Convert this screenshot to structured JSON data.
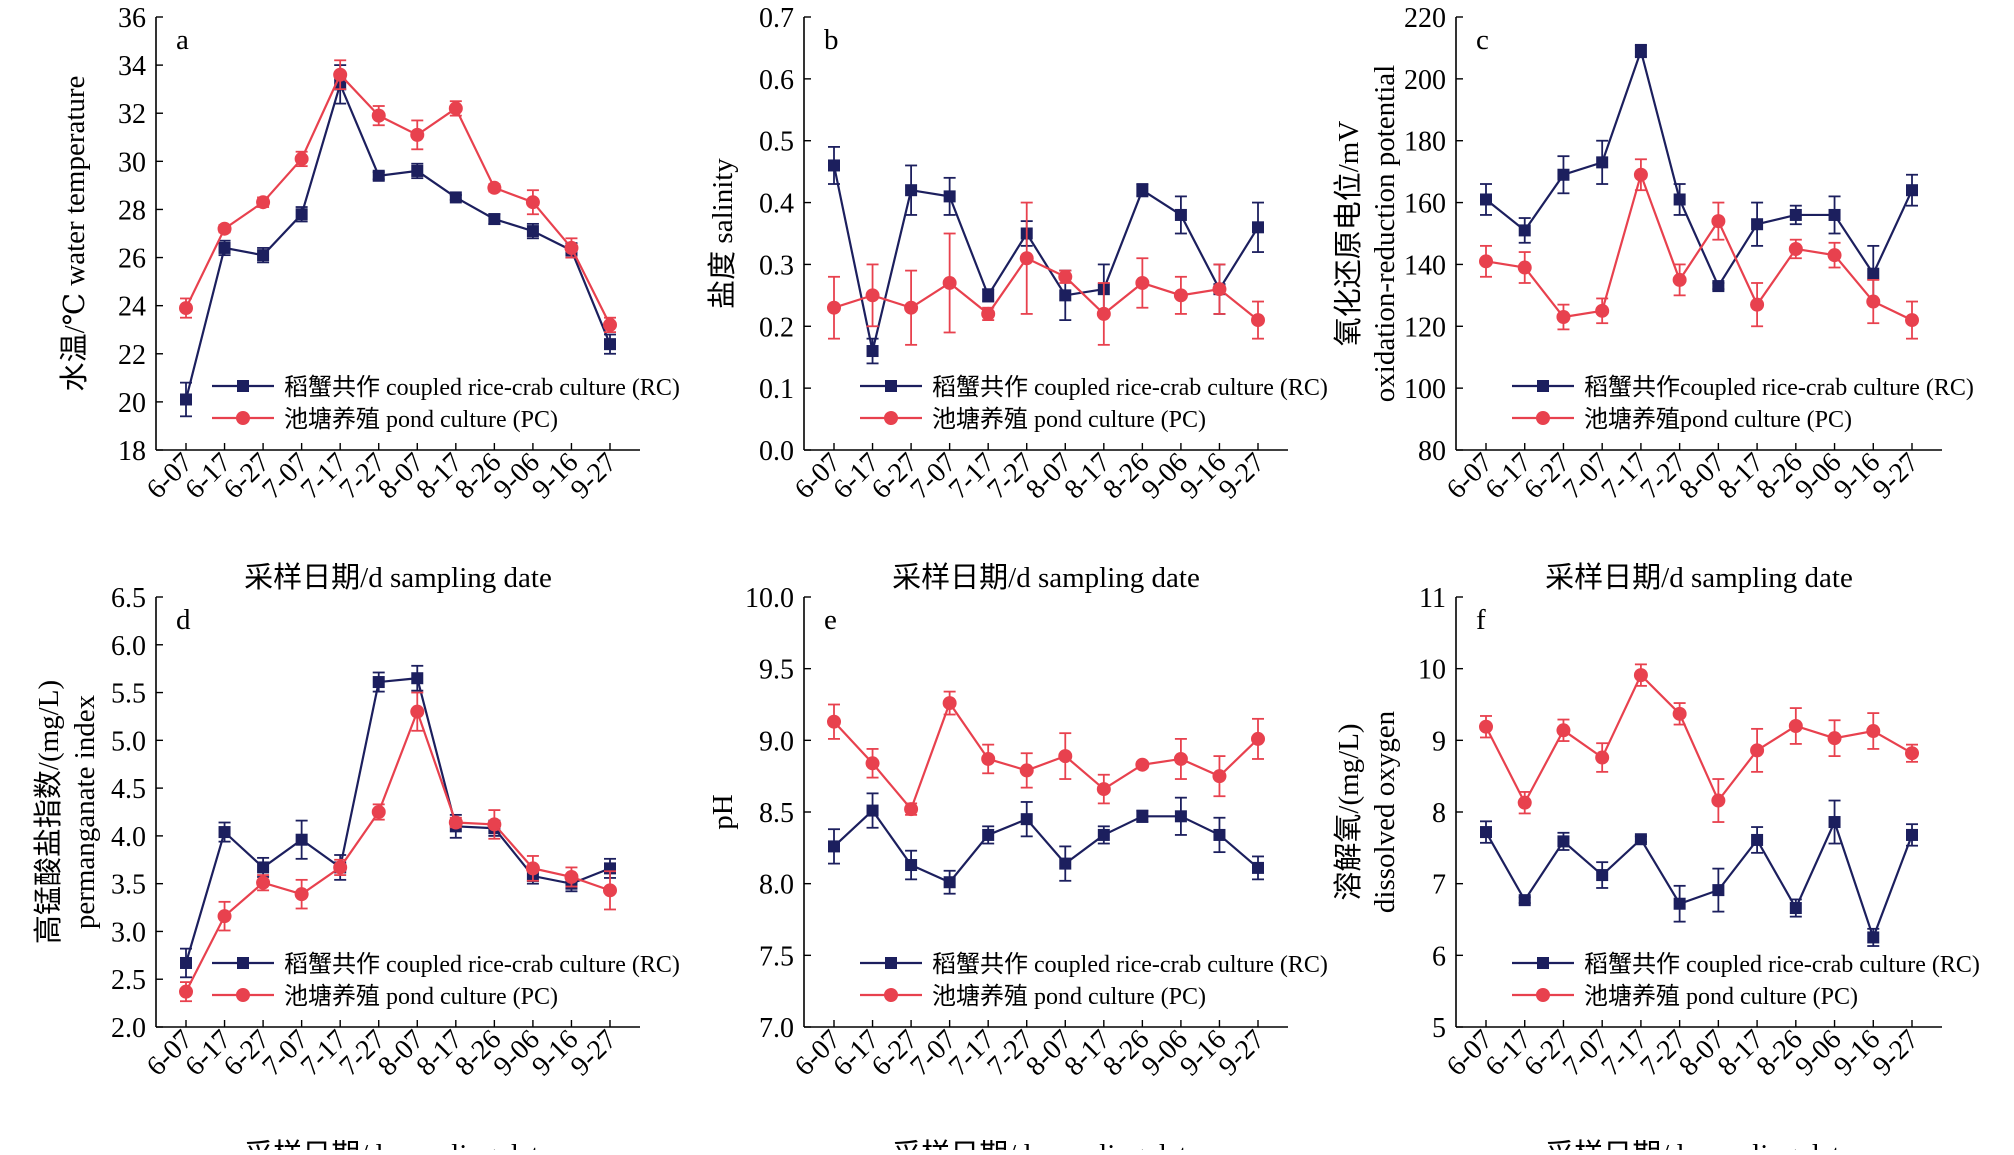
{
  "shared": {
    "dates": [
      "6-07",
      "6-17",
      "6-27",
      "7-07",
      "7-17",
      "7-27",
      "8-07",
      "8-17",
      "8-26",
      "9-06",
      "9-16",
      "9-27"
    ],
    "xlabel": "采样日期/d sampling date",
    "colors": {
      "rc": "#1c1f5e",
      "pc": "#e8414e"
    }
  },
  "chart_data": [
    {
      "id": "a",
      "type": "line",
      "panel_letter": "a",
      "ylabel": [
        "水温/℃ water temperature"
      ],
      "ylim": [
        18,
        36
      ],
      "yticks": [
        18,
        20,
        22,
        24,
        26,
        28,
        30,
        32,
        34,
        36
      ],
      "legend": [
        "稻蟹共作 coupled rice-crab culture (RC)",
        "池塘养殖 pond culture (PC)"
      ],
      "legend_position": "bottom-center",
      "series": [
        {
          "key": "rc",
          "values": [
            20.1,
            26.4,
            26.1,
            27.8,
            33.2,
            29.4,
            29.6,
            28.5,
            27.6,
            27.1,
            26.3,
            22.4
          ],
          "errors": [
            0.7,
            0.3,
            0.3,
            0.3,
            0.8,
            0.15,
            0.3,
            0.1,
            0.2,
            0.3,
            0.3,
            0.4
          ]
        },
        {
          "key": "pc",
          "values": [
            23.9,
            27.2,
            28.3,
            30.1,
            33.6,
            31.9,
            31.1,
            32.2,
            28.9,
            28.3,
            26.4,
            23.2
          ],
          "errors": [
            0.4,
            0.15,
            0.2,
            0.3,
            0.6,
            0.4,
            0.6,
            0.3,
            0.15,
            0.5,
            0.4,
            0.3
          ]
        }
      ]
    },
    {
      "id": "b",
      "type": "line",
      "panel_letter": "b",
      "ylabel": [
        "盐度 salinity"
      ],
      "ylim": [
        0,
        0.7
      ],
      "yticks": [
        0,
        0.1,
        0.2,
        0.3,
        0.4,
        0.5,
        0.6,
        0.7
      ],
      "legend": [
        "稻蟹共作 coupled rice-crab culture (RC)",
        "池塘养殖 pond culture (PC)"
      ],
      "legend_position": "bottom-center",
      "series": [
        {
          "key": "rc",
          "values": [
            0.46,
            0.16,
            0.42,
            0.41,
            0.25,
            0.35,
            0.25,
            0.26,
            0.42,
            0.38,
            0.26,
            0.36
          ],
          "errors": [
            0.03,
            0.02,
            0.04,
            0.03,
            0.01,
            0.02,
            0.04,
            0.04,
            0.01,
            0.03,
            0.04,
            0.04
          ]
        },
        {
          "key": "pc",
          "values": [
            0.23,
            0.25,
            0.23,
            0.27,
            0.22,
            0.31,
            0.28,
            0.22,
            0.27,
            0.25,
            0.26,
            0.21
          ],
          "errors": [
            0.05,
            0.05,
            0.06,
            0.08,
            0.01,
            0.09,
            0.01,
            0.05,
            0.04,
            0.03,
            0.04,
            0.03
          ]
        }
      ]
    },
    {
      "id": "c",
      "type": "line",
      "panel_letter": "c",
      "ylabel": [
        "氧化还原电位/mV",
        "oxidation-reduction potential"
      ],
      "ylim": [
        80,
        220
      ],
      "yticks": [
        80,
        100,
        120,
        140,
        160,
        180,
        200,
        220
      ],
      "legend": [
        "稻蟹共作coupled rice-crab culture (RC)",
        "池塘养殖pond culture (PC)"
      ],
      "legend_position": "bottom-center",
      "series": [
        {
          "key": "rc",
          "values": [
            161,
            151,
            169,
            173,
            209,
            161,
            133,
            153,
            156,
            156,
            137,
            164
          ],
          "errors": [
            5,
            4,
            6,
            7,
            2,
            5,
            1,
            7,
            3,
            6,
            9,
            5
          ]
        },
        {
          "key": "pc",
          "values": [
            141,
            139,
            123,
            125,
            169,
            135,
            154,
            127,
            145,
            143,
            128,
            122
          ],
          "errors": [
            5,
            5,
            4,
            4,
            5,
            5,
            6,
            7,
            3,
            4,
            7,
            6
          ]
        }
      ]
    },
    {
      "id": "d",
      "type": "line",
      "panel_letter": "d",
      "ylabel": [
        "高锰酸盐指数/(mg/L)",
        "permanganate index"
      ],
      "ylim": [
        2.0,
        6.5
      ],
      "yticks": [
        2.0,
        2.5,
        3.0,
        3.5,
        4.0,
        4.5,
        5.0,
        5.5,
        6.0,
        6.5
      ],
      "legend": [
        "稻蟹共作 coupled rice-crab culture (RC)",
        "池塘养殖 pond culture (PC)"
      ],
      "legend_position": "bottom-center",
      "series": [
        {
          "key": "rc",
          "values": [
            2.67,
            4.04,
            3.67,
            3.96,
            3.67,
            5.61,
            5.65,
            4.1,
            4.08,
            3.58,
            3.5,
            3.66
          ],
          "errors": [
            0.15,
            0.1,
            0.1,
            0.2,
            0.13,
            0.1,
            0.13,
            0.12,
            0.08,
            0.08,
            0.08,
            0.1
          ]
        },
        {
          "key": "pc",
          "values": [
            2.37,
            3.16,
            3.51,
            3.39,
            3.67,
            4.25,
            5.3,
            4.14,
            4.12,
            3.66,
            3.57,
            3.43
          ],
          "errors": [
            0.1,
            0.15,
            0.08,
            0.15,
            0.08,
            0.08,
            0.2,
            0.05,
            0.15,
            0.13,
            0.1,
            0.2
          ]
        }
      ]
    },
    {
      "id": "e",
      "type": "line",
      "panel_letter": "e",
      "ylabel": [
        "pH"
      ],
      "ylim": [
        7.0,
        10.0
      ],
      "yticks": [
        7.0,
        7.5,
        8.0,
        8.5,
        9.0,
        9.5,
        10.0
      ],
      "legend": [
        "稻蟹共作 coupled rice-crab culture (RC)",
        "池塘养殖 pond culture (PC)"
      ],
      "legend_position": "bottom-center",
      "series": [
        {
          "key": "rc",
          "values": [
            8.26,
            8.51,
            8.13,
            8.01,
            8.34,
            8.45,
            8.14,
            8.34,
            8.47,
            8.47,
            8.34,
            8.11
          ],
          "errors": [
            0.12,
            0.12,
            0.1,
            0.08,
            0.06,
            0.12,
            0.12,
            0.06,
            0.04,
            0.13,
            0.12,
            0.08
          ]
        },
        {
          "key": "pc",
          "values": [
            9.13,
            8.84,
            8.52,
            9.26,
            8.87,
            8.79,
            8.89,
            8.66,
            8.83,
            8.87,
            8.75,
            9.01
          ],
          "errors": [
            0.12,
            0.1,
            0.04,
            0.08,
            0.1,
            0.12,
            0.16,
            0.1,
            0.02,
            0.14,
            0.14,
            0.14
          ]
        }
      ]
    },
    {
      "id": "f",
      "type": "line",
      "panel_letter": "f",
      "ylabel": [
        "溶解氧/(mg/L)",
        "dissolved oxygen"
      ],
      "ylim": [
        5,
        11
      ],
      "yticks": [
        5,
        6,
        7,
        8,
        9,
        10,
        11
      ],
      "legend": [
        "稻蟹共作 coupled rice-crab culture (RC)",
        "池塘养殖 pond culture (PC)"
      ],
      "legend_position": "bottom-center",
      "series": [
        {
          "key": "rc",
          "values": [
            7.72,
            6.77,
            7.59,
            7.12,
            7.62,
            6.72,
            6.91,
            7.61,
            6.66,
            7.86,
            6.25,
            7.68
          ],
          "errors": [
            0.15,
            0.04,
            0.12,
            0.18,
            0.04,
            0.25,
            0.3,
            0.18,
            0.12,
            0.3,
            0.12,
            0.15
          ]
        },
        {
          "key": "pc",
          "values": [
            9.19,
            8.13,
            9.14,
            8.76,
            9.91,
            9.37,
            8.16,
            8.86,
            9.2,
            9.03,
            9.13,
            8.82
          ],
          "errors": [
            0.15,
            0.15,
            0.15,
            0.2,
            0.15,
            0.15,
            0.3,
            0.3,
            0.25,
            0.25,
            0.25,
            0.12
          ]
        }
      ]
    }
  ]
}
